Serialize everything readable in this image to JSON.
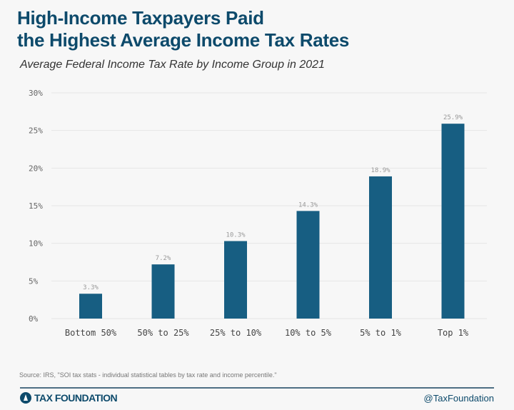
{
  "title_line1": "High-Income Taxpayers Paid",
  "title_line2": "the Highest Average Income Tax Rates",
  "subtitle": "Average Federal Income Tax Rate by Income Group in 2021",
  "source": "Source: IRS, \"SOI tax stats - individual statistical tables by tax rate and income percentile.\"",
  "logo_text": "TAX FOUNDATION",
  "handle": "@TaxFoundation",
  "colors": {
    "bar": "#175e82",
    "title": "#0d4a6b",
    "grid": "#e6e6e6"
  },
  "chart_data": {
    "type": "bar",
    "title": "High-Income Taxpayers Paid the Highest Average Income Tax Rates",
    "subtitle": "Average Federal Income Tax Rate by Income Group in 2021",
    "categories": [
      "Bottom 50%",
      "50% to 25%",
      "25% to 10%",
      "10% to 5%",
      "5% to 1%",
      "Top 1%"
    ],
    "values": [
      3.3,
      7.2,
      10.3,
      14.3,
      18.9,
      25.9
    ],
    "data_labels": [
      "3.3%",
      "7.2%",
      "10.3%",
      "14.3%",
      "18.9%",
      "25.9%"
    ],
    "yticks": [
      "0%",
      "5%",
      "10%",
      "15%",
      "20%",
      "25%",
      "30%"
    ],
    "ylim": [
      0,
      30
    ],
    "grid": true
  }
}
